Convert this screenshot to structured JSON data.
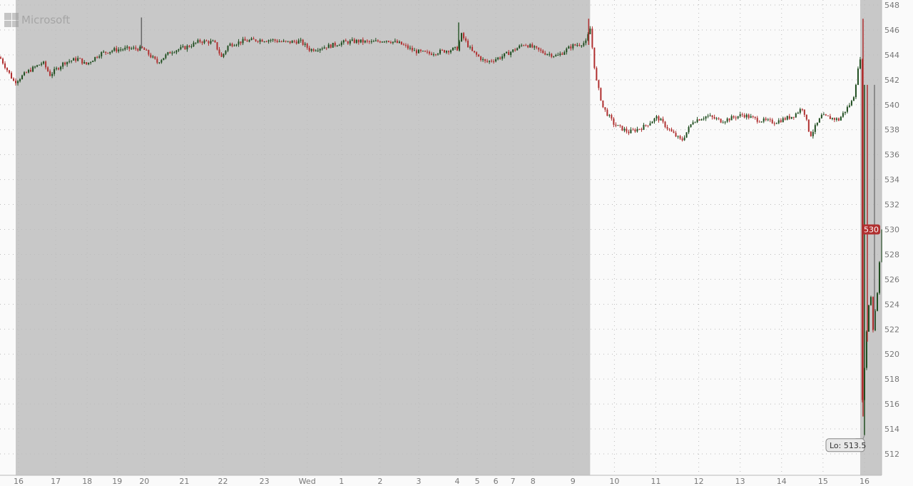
{
  "logo": {
    "text": "Microsoft"
  },
  "chart_data": {
    "type": "candlestick",
    "title": "",
    "xlim": [
      0,
      617
    ],
    "ylim": [
      511,
      548.4
    ],
    "grid": true,
    "y_ticks": [
      512,
      514,
      516,
      518,
      520,
      522,
      524,
      526,
      528,
      530,
      532,
      534,
      536,
      538,
      540,
      542,
      544,
      546,
      548
    ],
    "x_ticks": [
      {
        "label": "16",
        "bar": 13
      },
      {
        "label": "17",
        "bar": 39
      },
      {
        "label": "18",
        "bar": 61
      },
      {
        "label": "19",
        "bar": 82
      },
      {
        "label": "20",
        "bar": 101
      },
      {
        "label": "21",
        "bar": 129
      },
      {
        "label": "22",
        "bar": 156
      },
      {
        "label": "23",
        "bar": 185
      },
      {
        "label": "Wed",
        "bar": 215
      },
      {
        "label": "1",
        "bar": 239
      },
      {
        "label": "2",
        "bar": 266
      },
      {
        "label": "3",
        "bar": 293
      },
      {
        "label": "4",
        "bar": 320
      },
      {
        "label": "5",
        "bar": 334
      },
      {
        "label": "6",
        "bar": 347
      },
      {
        "label": "7",
        "bar": 359
      },
      {
        "label": "8",
        "bar": 373
      },
      {
        "label": "9",
        "bar": 401
      },
      {
        "label": "10",
        "bar": 430
      },
      {
        "label": "11",
        "bar": 459
      },
      {
        "label": "12",
        "bar": 489
      },
      {
        "label": "13",
        "bar": 518
      },
      {
        "label": "14",
        "bar": 547
      },
      {
        "label": "15",
        "bar": 576
      },
      {
        "label": "16",
        "bar": 605
      }
    ],
    "shaded_sessions": [
      [
        11,
        413
      ],
      [
        602,
        617
      ]
    ],
    "price_path": [
      [
        0,
        543.8
      ],
      [
        10,
        541.8
      ],
      [
        20,
        542.7
      ],
      [
        30,
        543.4
      ],
      [
        35,
        542.4
      ],
      [
        45,
        543.4
      ],
      [
        55,
        543.7
      ],
      [
        60,
        543.2
      ],
      [
        70,
        544.1
      ],
      [
        80,
        544.4
      ],
      [
        90,
        544.5
      ],
      [
        100,
        544.5
      ],
      [
        110,
        543.4
      ],
      [
        120,
        544.3
      ],
      [
        130,
        544.6
      ],
      [
        140,
        545.1
      ],
      [
        150,
        545.0
      ],
      [
        155,
        543.8
      ],
      [
        160,
        544.8
      ],
      [
        170,
        545.1
      ],
      [
        180,
        545.2
      ],
      [
        190,
        545.2
      ],
      [
        200,
        545.0
      ],
      [
        210,
        545.1
      ],
      [
        217,
        544.4
      ],
      [
        230,
        544.7
      ],
      [
        240,
        545.0
      ],
      [
        250,
        545.1
      ],
      [
        260,
        545.0
      ],
      [
        270,
        545.2
      ],
      [
        280,
        544.9
      ],
      [
        290,
        544.3
      ],
      [
        300,
        544.1
      ],
      [
        310,
        544.3
      ],
      [
        320,
        544.5
      ],
      [
        323,
        545.6
      ],
      [
        330,
        544.3
      ],
      [
        340,
        543.4
      ],
      [
        350,
        543.8
      ],
      [
        360,
        544.4
      ],
      [
        367,
        544.9
      ],
      [
        380,
        544.2
      ],
      [
        390,
        543.9
      ],
      [
        400,
        544.7
      ],
      [
        410,
        545.0
      ],
      [
        413,
        546.1
      ],
      [
        417,
        542.1
      ],
      [
        422,
        539.8
      ],
      [
        430,
        538.4
      ],
      [
        440,
        537.8
      ],
      [
        450,
        538.2
      ],
      [
        460,
        539.0
      ],
      [
        470,
        537.8
      ],
      [
        477,
        537.1
      ],
      [
        485,
        538.7
      ],
      [
        495,
        539.1
      ],
      [
        505,
        538.7
      ],
      [
        520,
        539.2
      ],
      [
        530,
        538.8
      ],
      [
        542,
        538.6
      ],
      [
        555,
        539.1
      ],
      [
        562,
        539.8
      ],
      [
        567,
        537.5
      ],
      [
        575,
        539.1
      ],
      [
        587,
        538.8
      ],
      [
        597,
        540.4
      ],
      [
        602,
        543.8
      ],
      [
        603,
        515.2
      ],
      [
        606,
        521.0
      ],
      [
        609,
        525.5
      ],
      [
        611,
        522.0
      ],
      [
        614,
        525.0
      ],
      [
        617,
        530.0
      ]
    ],
    "spikes": [
      {
        "bar": 99,
        "high": 547.0,
        "low": 544.5,
        "color": "#666666"
      },
      {
        "bar": 321,
        "high": 546.6,
        "low": 544.5,
        "color": "#2e5a2e"
      },
      {
        "bar": 412,
        "high": 546.9,
        "low": 544.8,
        "color": "#b03030"
      },
      {
        "bar": 604,
        "high": 546.9,
        "low": 515.0,
        "color": "#b03030"
      },
      {
        "bar": 605,
        "high": 541.6,
        "low": 513.5,
        "color": "#1f4d1f"
      },
      {
        "bar": 607,
        "high": 541.6,
        "low": 521.0,
        "color": "#b03030"
      },
      {
        "bar": 612,
        "high": 541.6,
        "low": 522.0,
        "color": "#777777"
      }
    ],
    "last_price": {
      "label": "530",
      "value": 530.0
    },
    "low_annotation": {
      "label": "Lo: 513.5",
      "value": 513.5
    },
    "colors": {
      "up": "#1f4d1f",
      "down": "#b03030",
      "shade": "#c8c8c8",
      "grid": "#bbbbbb",
      "badge": "#b03030"
    }
  }
}
